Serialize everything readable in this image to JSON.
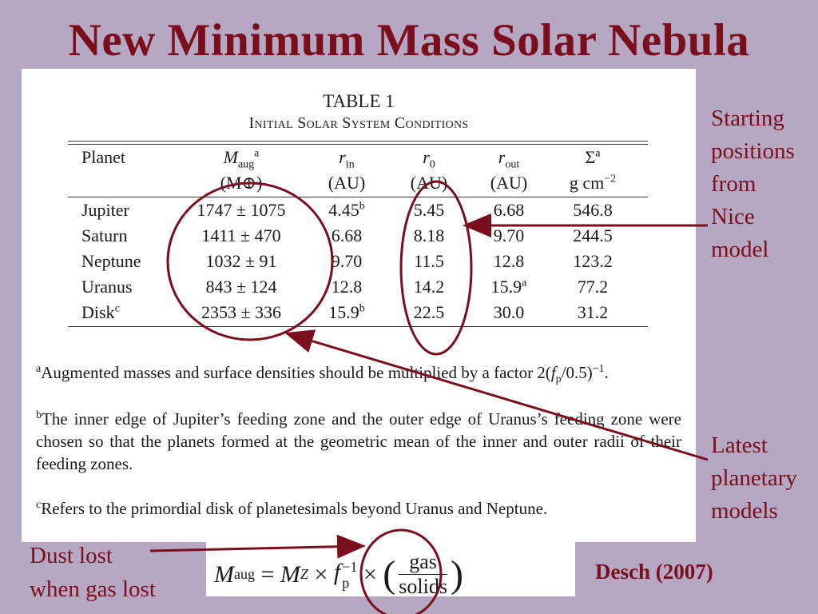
{
  "slide": {
    "title": "New Minimum Mass Solar Nebula",
    "citation": "Desch (2007)"
  },
  "annotations": {
    "starting_positions": [
      "Starting",
      "positions",
      "from",
      "Nice",
      "model"
    ],
    "latest_models": [
      "Latest",
      "planetary",
      "models"
    ],
    "dust_lost": [
      "Dust lost",
      "when gas lost"
    ]
  },
  "table": {
    "caption_number": "TABLE 1",
    "caption_title": "Initial Solar System Conditions",
    "headers": {
      "planet": "Planet",
      "m_aug": "M",
      "m_aug_sub": "aug",
      "m_aug_sup": "a",
      "m_aug_unit": "(M⊕)",
      "r_in": "r",
      "r_in_sub": "in",
      "r_in_unit": "(AU)",
      "r0": "r",
      "r0_sub": "0",
      "r0_unit": "(AU)",
      "r_out": "r",
      "r_out_sub": "out",
      "r_out_unit": "(AU)",
      "sigma": "Σ",
      "sigma_sup": "a",
      "sigma_unit": "g cm",
      "sigma_unit_sup": "−2"
    },
    "rows": [
      {
        "planet": "Jupiter",
        "planet_sup": "",
        "m_aug": "1747 ± 1075",
        "r_in": "4.45",
        "r_in_sup": "b",
        "r0": "5.45",
        "r_out": "6.68",
        "r_out_sup": "",
        "sigma": "546.8"
      },
      {
        "planet": "Saturn",
        "planet_sup": "",
        "m_aug": "1411 ± 470",
        "r_in": "6.68",
        "r_in_sup": "",
        "r0": "8.18",
        "r_out": "9.70",
        "r_out_sup": "",
        "sigma": "244.5"
      },
      {
        "planet": "Neptune",
        "planet_sup": "",
        "m_aug": "1032 ± 91",
        "r_in": "9.70",
        "r_in_sup": "",
        "r0": "11.5",
        "r_out": "12.8",
        "r_out_sup": "",
        "sigma": "123.2"
      },
      {
        "planet": "Uranus",
        "planet_sup": "",
        "m_aug": "843 ± 124",
        "r_in": "12.8",
        "r_in_sup": "",
        "r0": "14.2",
        "r_out": "15.9",
        "r_out_sup": "a",
        "sigma": "77.2"
      },
      {
        "planet": "Disk",
        "planet_sup": "c",
        "m_aug": "2353 ± 336",
        "r_in": "15.9",
        "r_in_sup": "b",
        "r0": "22.5",
        "r_out": "30.0",
        "r_out_sup": "",
        "sigma": "31.2"
      }
    ],
    "footnotes": {
      "a_mark": "a",
      "a_text": "Augmented masses and surface densities should be multiplied by a factor 2(",
      "a_f": "f",
      "a_sub": "p",
      "a_tail": "/0.5)",
      "a_sup": "−1",
      "a_end": ".",
      "b_mark": "b",
      "b_text": "The inner edge of Jupiter’s feeding zone and the outer edge of Uranus’s feeding zone were chosen so that the planets formed at the geometric mean of the inner and outer radii of their feeding zones.",
      "c_mark": "c",
      "c_text": "Refers to the primordial disk of planetesimals beyond Uranus and Neptune."
    }
  },
  "formula": {
    "lhs": "M",
    "lhs_sub": "aug",
    "eq": " = ",
    "mz": "M",
    "mz_sub": "Z",
    "times1": " × ",
    "f": "f",
    "f_sup": "−1",
    "f_sub": "p",
    "times2": " × ",
    "num": "gas",
    "den": "solids"
  },
  "colors": {
    "background": "#b6a8c2",
    "accent": "#7a0e1c"
  }
}
